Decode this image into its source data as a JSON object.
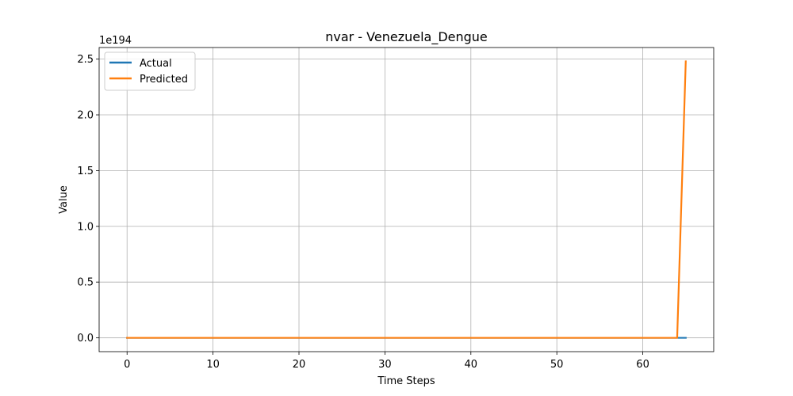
{
  "chart_data": {
    "type": "line",
    "title": "nvar - Venezuela_Dengue",
    "xlabel": "Time Steps",
    "ylabel": "Value",
    "y_offset_label": "1e194",
    "xlim": [
      -3.25,
      68.25
    ],
    "ylim": [
      -0.124,
      2.604
    ],
    "x_ticks": [
      0,
      10,
      20,
      30,
      40,
      50,
      60
    ],
    "x_tick_labels": [
      "0",
      "10",
      "20",
      "30",
      "40",
      "50",
      "60"
    ],
    "y_ticks": [
      0.0,
      0.5,
      1.0,
      1.5,
      2.0,
      2.5
    ],
    "y_tick_labels": [
      "0.0",
      "0.5",
      "1.0",
      "1.5",
      "2.0",
      "2.5"
    ],
    "grid": true,
    "legend_position": "upper-left",
    "series": [
      {
        "name": "Actual",
        "color": "#1f77b4",
        "points": [
          [
            0,
            0
          ],
          [
            65,
            0
          ]
        ]
      },
      {
        "name": "Predicted",
        "color": "#ff7f0e",
        "points": [
          [
            0,
            0
          ],
          [
            64,
            0
          ],
          [
            65,
            2.48
          ]
        ]
      }
    ]
  }
}
